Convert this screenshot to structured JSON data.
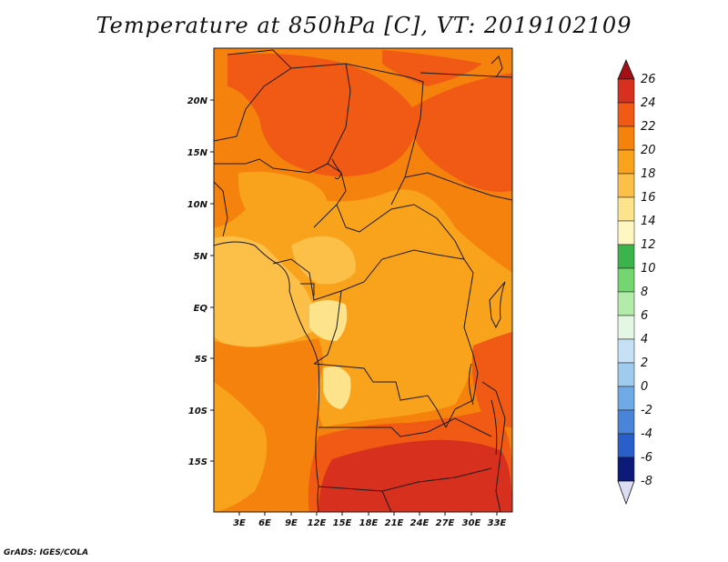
{
  "title": "Temperature at 850hPa [C], VT: 2019102109",
  "credit": "GrADS: IGES/COLA",
  "colors": {
    "bg": "#ffffff",
    "border_line": "#1a1a1a"
  },
  "map": {
    "lat_labels": [
      "20N",
      "15N",
      "10N",
      "5N",
      "EQ",
      "5S",
      "10S",
      "15S"
    ],
    "lon_labels": [
      "3E",
      "6E",
      "9E",
      "12E",
      "15E",
      "18E",
      "21E",
      "24E",
      "27E",
      "30E",
      "33E"
    ]
  },
  "colorbar": {
    "levels": [
      "26",
      "24",
      "22",
      "20",
      "18",
      "16",
      "14",
      "12",
      "10",
      "8",
      "6",
      "4",
      "2",
      "0",
      "-2",
      "-4",
      "-6",
      "-8"
    ],
    "colors": [
      "#a50f15",
      "#d7301f",
      "#f05a14",
      "#f5820c",
      "#f9a21c",
      "#fcc048",
      "#fde48c",
      "#fff7c2",
      "#3cb44b",
      "#74d66e",
      "#b3ecaa",
      "#e3f7e3",
      "#c6e0f5",
      "#9ecbee",
      "#6fa9e6",
      "#4a84d9",
      "#2a5fc9",
      "#1a3aa8",
      "#0d1a7a",
      "#dcdcf4"
    ]
  }
}
